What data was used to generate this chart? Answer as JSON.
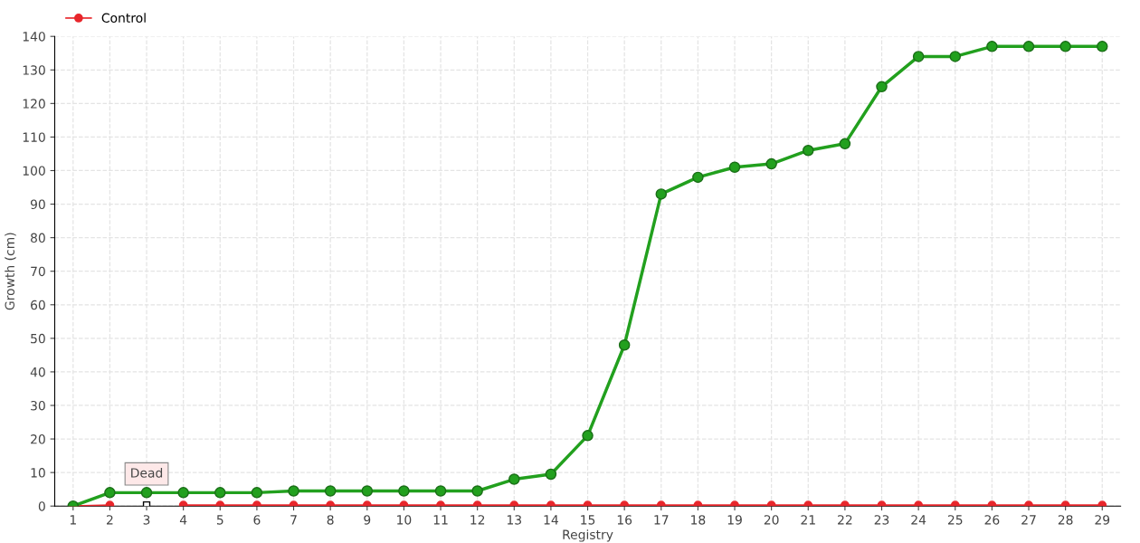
{
  "chart_data": {
    "type": "line",
    "xlabel": "Registry",
    "ylabel": "Growth (cm)",
    "categories": [
      "1",
      "2",
      "3",
      "4",
      "5",
      "6",
      "7",
      "8",
      "9",
      "10",
      "11",
      "12",
      "13",
      "14",
      "15",
      "16",
      "17",
      "18",
      "19",
      "20",
      "21",
      "22",
      "23",
      "24",
      "25",
      "26",
      "27",
      "28",
      "29"
    ],
    "series": [
      {
        "color": "#22a01e",
        "values": [
          0,
          4,
          4,
          4,
          4,
          4,
          4.5,
          4.5,
          4.5,
          4.5,
          4.5,
          4.5,
          8,
          9.5,
          21,
          48,
          93,
          98,
          101,
          102,
          106,
          108,
          125,
          134,
          134,
          137,
          137,
          137,
          137
        ]
      },
      {
        "name": "Control",
        "color": "#e8262b",
        "values": [
          0,
          0.3,
          null,
          0.3,
          0.3,
          0.3,
          0.3,
          0.3,
          0.3,
          0.3,
          0.3,
          0.3,
          0.3,
          0.3,
          0.3,
          0.3,
          0.3,
          0.3,
          0.3,
          0.3,
          0.3,
          0.3,
          0.3,
          0.3,
          0.3,
          0.3,
          0.3,
          0.3,
          0.3
        ]
      }
    ],
    "ylim": [
      0,
      140
    ],
    "yticks": [
      0,
      10,
      20,
      30,
      40,
      50,
      60,
      70,
      80,
      90,
      100,
      110,
      120,
      130,
      140
    ],
    "grid": true,
    "legend": "top left",
    "marker": "circle",
    "line_style": "solid",
    "annotations": [
      {
        "text": "Dead",
        "x": "3",
        "y": 0.3
      }
    ]
  }
}
